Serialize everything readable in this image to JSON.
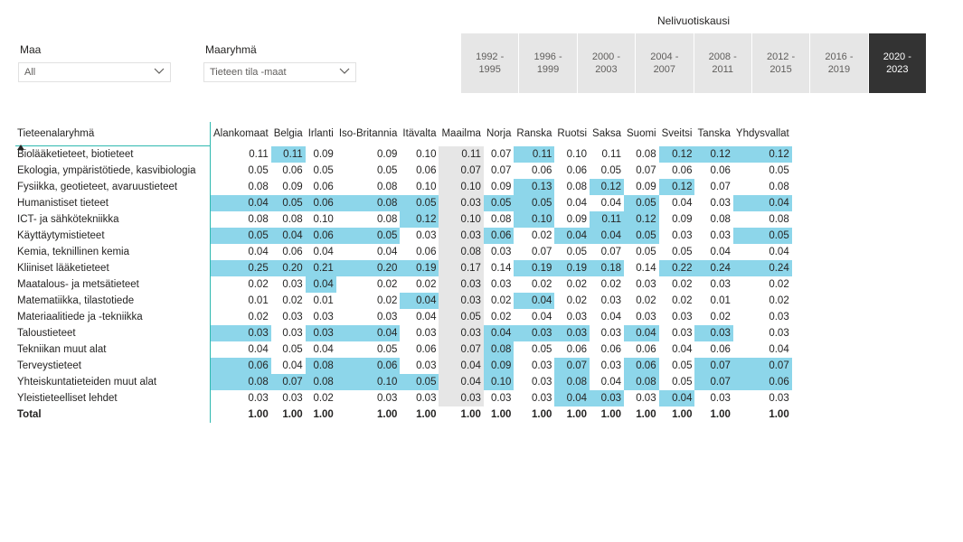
{
  "slicers": {
    "country": {
      "label": "Maa",
      "value": "All"
    },
    "country_group": {
      "label": "Maaryhmä",
      "value": "Tieteen tila -maat"
    }
  },
  "period_slicer": {
    "title": "Nelivuotiskausi",
    "selected_index": 7,
    "items": [
      {
        "line1": "1992 -",
        "line2": "1995"
      },
      {
        "line1": "1996 -",
        "line2": "1999"
      },
      {
        "line1": "2000 -",
        "line2": "2003"
      },
      {
        "line1": "2004 -",
        "line2": "2007"
      },
      {
        "line1": "2008 -",
        "line2": "2011"
      },
      {
        "line1": "2012 -",
        "line2": "2015"
      },
      {
        "line1": "2016 -",
        "line2": "2019"
      },
      {
        "line1": "2020 -",
        "line2": "2023"
      }
    ]
  },
  "colors": {
    "highlight": "#8dd6ea",
    "world_column": "#e6e6e6",
    "selected_period": "#333333",
    "accent_line": "#2fb9b0"
  },
  "matrix": {
    "row_header": "Tieteenalaryhmä",
    "columns": [
      "Alankomaat",
      "Belgia",
      "Irlanti",
      "Iso-Britannia",
      "Itävalta",
      "Maailma",
      "Norja",
      "Ranska",
      "Ruotsi",
      "Saksa",
      "Suomi",
      "Sveitsi",
      "Tanska",
      "Yhdysvallat"
    ],
    "rows": [
      {
        "label": "Biolääketieteet, biotieteet",
        "values": [
          "0.11",
          "0.11",
          "0.09",
          "0.09",
          "0.10",
          "0.11",
          "0.07",
          "0.11",
          "0.10",
          "0.11",
          "0.08",
          "0.12",
          "0.12",
          "0.12"
        ],
        "hl": [
          1,
          7,
          11,
          12,
          13
        ]
      },
      {
        "label": "Ekologia, ympäristötiede, kasvibiologia",
        "values": [
          "0.05",
          "0.06",
          "0.05",
          "0.05",
          "0.06",
          "0.07",
          "0.07",
          "0.06",
          "0.06",
          "0.05",
          "0.07",
          "0.06",
          "0.06",
          "0.05"
        ],
        "hl": []
      },
      {
        "label": "Fysiikka, geotieteet, avaruustieteet",
        "values": [
          "0.08",
          "0.09",
          "0.06",
          "0.08",
          "0.10",
          "0.10",
          "0.09",
          "0.13",
          "0.08",
          "0.12",
          "0.09",
          "0.12",
          "0.07",
          "0.08"
        ],
        "hl": [
          7,
          9,
          11
        ]
      },
      {
        "label": "Humanistiset tieteet",
        "values": [
          "0.04",
          "0.05",
          "0.06",
          "0.08",
          "0.05",
          "0.03",
          "0.05",
          "0.05",
          "0.04",
          "0.04",
          "0.05",
          "0.04",
          "0.03",
          "0.04"
        ],
        "hl": [
          0,
          1,
          2,
          3,
          4,
          6,
          7,
          10,
          13
        ]
      },
      {
        "label": "ICT- ja sähkötekniikka",
        "values": [
          "0.08",
          "0.08",
          "0.10",
          "0.08",
          "0.12",
          "0.10",
          "0.08",
          "0.10",
          "0.09",
          "0.11",
          "0.12",
          "0.09",
          "0.08",
          "0.08"
        ],
        "hl": [
          4,
          7,
          9,
          10
        ]
      },
      {
        "label": "Käyttäytymistieteet",
        "values": [
          "0.05",
          "0.04",
          "0.06",
          "0.05",
          "0.03",
          "0.03",
          "0.06",
          "0.02",
          "0.04",
          "0.04",
          "0.05",
          "0.03",
          "0.03",
          "0.05"
        ],
        "hl": [
          0,
          1,
          2,
          3,
          6,
          8,
          9,
          10,
          13
        ]
      },
      {
        "label": "Kemia, teknillinen kemia",
        "values": [
          "0.04",
          "0.06",
          "0.04",
          "0.04",
          "0.06",
          "0.08",
          "0.03",
          "0.07",
          "0.05",
          "0.07",
          "0.05",
          "0.05",
          "0.04",
          "0.04"
        ],
        "hl": []
      },
      {
        "label": "Kliiniset lääketieteet",
        "values": [
          "0.25",
          "0.20",
          "0.21",
          "0.20",
          "0.19",
          "0.17",
          "0.14",
          "0.19",
          "0.19",
          "0.18",
          "0.14",
          "0.22",
          "0.24",
          "0.24"
        ],
        "hl": [
          0,
          1,
          2,
          3,
          4,
          7,
          8,
          9,
          11,
          12,
          13
        ]
      },
      {
        "label": "Maatalous- ja metsätieteet",
        "values": [
          "0.02",
          "0.03",
          "0.04",
          "0.02",
          "0.02",
          "0.03",
          "0.03",
          "0.02",
          "0.02",
          "0.02",
          "0.03",
          "0.02",
          "0.03",
          "0.02"
        ],
        "hl": [
          2
        ]
      },
      {
        "label": "Matematiikka, tilastotiede",
        "values": [
          "0.01",
          "0.02",
          "0.01",
          "0.02",
          "0.04",
          "0.03",
          "0.02",
          "0.04",
          "0.02",
          "0.03",
          "0.02",
          "0.02",
          "0.01",
          "0.02"
        ],
        "hl": [
          4,
          7
        ]
      },
      {
        "label": "Materiaalitiede ja -tekniikka",
        "values": [
          "0.02",
          "0.03",
          "0.03",
          "0.03",
          "0.04",
          "0.05",
          "0.02",
          "0.04",
          "0.03",
          "0.04",
          "0.03",
          "0.03",
          "0.02",
          "0.03"
        ],
        "hl": []
      },
      {
        "label": "Taloustieteet",
        "values": [
          "0.03",
          "0.03",
          "0.03",
          "0.04",
          "0.03",
          "0.03",
          "0.04",
          "0.03",
          "0.03",
          "0.03",
          "0.04",
          "0.03",
          "0.03",
          "0.03"
        ],
        "hl": [
          0,
          2,
          3,
          6,
          7,
          8,
          10,
          12
        ]
      },
      {
        "label": "Tekniikan muut alat",
        "values": [
          "0.04",
          "0.05",
          "0.04",
          "0.05",
          "0.06",
          "0.07",
          "0.08",
          "0.05",
          "0.06",
          "0.06",
          "0.06",
          "0.04",
          "0.06",
          "0.04"
        ],
        "hl": [
          6
        ]
      },
      {
        "label": "Terveystieteet",
        "values": [
          "0.06",
          "0.04",
          "0.08",
          "0.06",
          "0.03",
          "0.04",
          "0.09",
          "0.03",
          "0.07",
          "0.03",
          "0.06",
          "0.05",
          "0.07",
          "0.07"
        ],
        "hl": [
          0,
          2,
          3,
          6,
          8,
          10,
          12,
          13
        ]
      },
      {
        "label": "Yhteiskuntatieteiden muut alat",
        "values": [
          "0.08",
          "0.07",
          "0.08",
          "0.10",
          "0.05",
          "0.04",
          "0.10",
          "0.03",
          "0.08",
          "0.04",
          "0.08",
          "0.05",
          "0.07",
          "0.06"
        ],
        "hl": [
          0,
          1,
          2,
          3,
          4,
          6,
          8,
          10,
          12,
          13
        ]
      },
      {
        "label": "Yleistieteelliset lehdet",
        "values": [
          "0.03",
          "0.03",
          "0.02",
          "0.03",
          "0.03",
          "0.03",
          "0.03",
          "0.03",
          "0.04",
          "0.03",
          "0.03",
          "0.04",
          "0.03",
          "0.03"
        ],
        "hl": [
          8,
          9,
          11
        ]
      }
    ],
    "total": {
      "label": "Total",
      "values": [
        "1.00",
        "1.00",
        "1.00",
        "1.00",
        "1.00",
        "1.00",
        "1.00",
        "1.00",
        "1.00",
        "1.00",
        "1.00",
        "1.00",
        "1.00",
        "1.00"
      ]
    }
  }
}
